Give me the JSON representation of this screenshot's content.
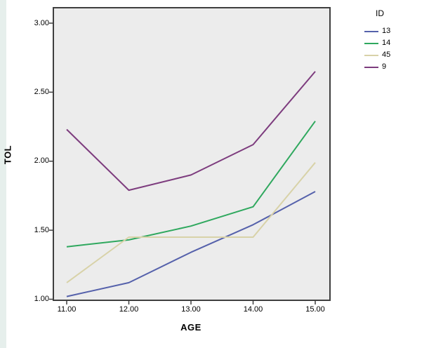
{
  "window": {
    "bg": "#ffffff",
    "left_strip_color": "#e6efec"
  },
  "chart_data": {
    "type": "line",
    "title": "",
    "xlabel": "AGE",
    "ylabel": "TOL",
    "legend_title": "ID",
    "legend_position": "top-right-outside",
    "grid": false,
    "plot_bg": "#ececec",
    "border_color": "#3f3f3f",
    "x": [
      11,
      12,
      13,
      14,
      15
    ],
    "x_tick_labels": [
      "11.00",
      "12.00",
      "13.00",
      "14.00",
      "15.00"
    ],
    "y_ticks": [
      1.0,
      1.5,
      2.0,
      2.5,
      3.0
    ],
    "y_tick_labels": [
      "1.00",
      "1.50",
      "2.00",
      "2.50",
      "3.00"
    ],
    "xlim": [
      10.78,
      15.24
    ],
    "ylim": [
      0.99,
      3.11
    ],
    "series": [
      {
        "name": "13",
        "color": "#5561ab",
        "values": [
          1.02,
          1.12,
          1.34,
          1.54,
          1.78
        ]
      },
      {
        "name": "14",
        "color": "#2fa85e",
        "values": [
          1.38,
          1.43,
          1.53,
          1.67,
          2.29
        ]
      },
      {
        "name": "45",
        "color": "#d8d2a8",
        "values": [
          1.12,
          1.45,
          1.45,
          1.45,
          1.99
        ]
      },
      {
        "name": "9",
        "color": "#7d3c7e",
        "values": [
          2.23,
          1.79,
          1.9,
          2.12,
          2.65
        ]
      }
    ]
  }
}
